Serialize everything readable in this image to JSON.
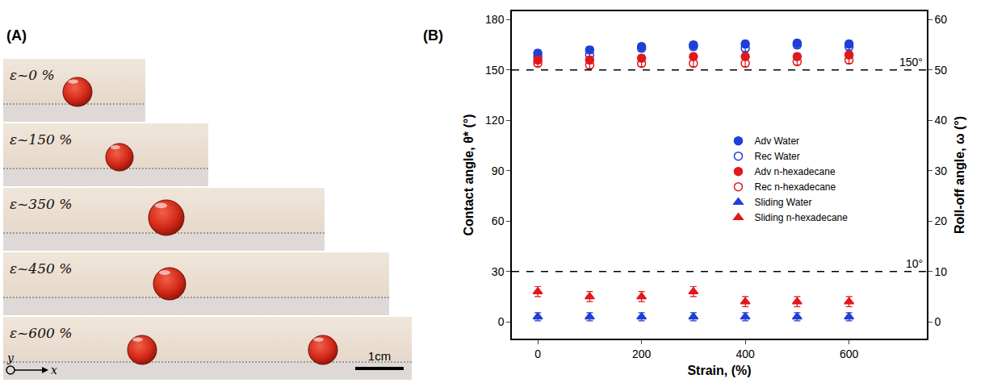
{
  "panel_a": {
    "label": "(A)",
    "frames": [
      {
        "label": "ε~0 %",
        "drops": 1
      },
      {
        "label": "ε~150 %",
        "drops": 1
      },
      {
        "label": "ε~350 %",
        "drops": 1
      },
      {
        "label": "ε~450 %",
        "drops": 1
      },
      {
        "label": "ε~600 %",
        "drops": 2
      }
    ],
    "scale_bar": "1cm",
    "axis_labels": {
      "vertical": "y",
      "horizontal": "x"
    }
  },
  "chart_data": {
    "type": "scatter",
    "label": "(B)",
    "x_label": "Strain, (%)",
    "y_label": "Contact angle, θ* (°)",
    "y2_label": "Roll-off angle, ω (°)",
    "x": [
      0,
      100,
      200,
      300,
      400,
      500,
      600
    ],
    "xlim": [
      -50,
      750
    ],
    "xticks": [
      0,
      200,
      400,
      600
    ],
    "ylim": [
      -10,
      185
    ],
    "yticks": [
      0,
      30,
      60,
      90,
      120,
      150,
      180
    ],
    "y2lim": [
      -3.33,
      61.67
    ],
    "y2ticks": [
      0,
      10,
      20,
      30,
      40,
      50,
      60
    ],
    "legend": "right",
    "lines": [
      {
        "axis": "y",
        "value": 150,
        "label": "150°"
      },
      {
        "axis": "y2",
        "value": 10,
        "label": "10°"
      }
    ],
    "series": [
      {
        "name": "Adv Water",
        "color": "#1f3fd6",
        "marker": "circle",
        "values": [
          160,
          162,
          164,
          165,
          165.5,
          166,
          165.5
        ],
        "errors": [
          2,
          2,
          2,
          2,
          2,
          2,
          2
        ]
      },
      {
        "name": "Rec Water",
        "color": "#1f3fd6",
        "marker": "circle-open",
        "values": [
          158,
          159,
          163,
          164,
          163,
          165,
          164
        ],
        "errors": [
          2,
          2,
          2,
          2,
          2,
          2,
          2
        ]
      },
      {
        "name": "Adv n-hexadecane",
        "color": "#e0191b",
        "marker": "circle",
        "values": [
          156,
          156,
          157,
          158,
          158,
          158,
          159
        ],
        "errors": [
          2,
          2,
          2,
          2,
          2,
          2,
          2
        ]
      },
      {
        "name": "Rec n-hexadecane",
        "color": "#e0191b",
        "marker": "circle-open",
        "values": [
          154,
          153,
          154,
          154,
          154,
          155,
          156
        ],
        "errors": [
          2,
          2,
          2,
          2,
          2,
          2,
          2
        ]
      },
      {
        "name": "Sliding Water",
        "color": "#1f3fd6",
        "marker": "triangle-up",
        "axis": "y2",
        "values": [
          1,
          1,
          1,
          1,
          1,
          1,
          1
        ],
        "errors": [
          0.8,
          0.8,
          0.8,
          0.8,
          0.8,
          0.8,
          0.8
        ]
      },
      {
        "name": "Sliding n-hexadecane",
        "color": "#e0191b",
        "marker": "triangle-up",
        "axis": "y2",
        "values": [
          6,
          5,
          5,
          6,
          4,
          4,
          4
        ],
        "errors": [
          1,
          1,
          1,
          1,
          1,
          1,
          1
        ]
      }
    ]
  }
}
